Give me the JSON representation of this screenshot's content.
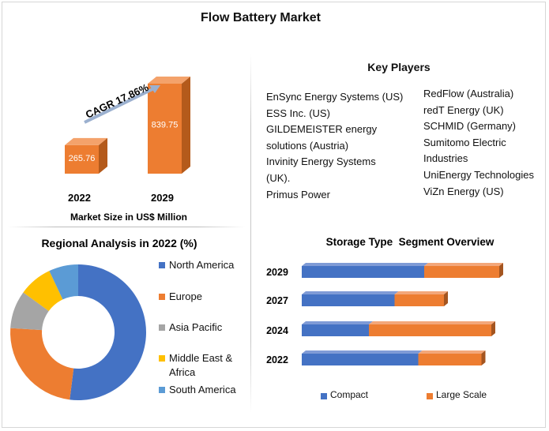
{
  "title": "Flow Battery Market",
  "market_size": {
    "caption": "Market Size in US$ Million",
    "cagr_label": "CAGR 17.86%",
    "bars": [
      {
        "year": "2022",
        "value": 265.76,
        "value_label": "265.76"
      },
      {
        "year": "2029",
        "value": 839.75,
        "value_label": "839.75"
      }
    ]
  },
  "key_players": {
    "title": "Key Players",
    "left_column": [
      "EnSync Energy Systems (US)",
      "ESS Inc. (US)",
      "GILDEMEISTER energy",
      "solutions (Austria)",
      "Invinity Energy Systems",
      "(UK).",
      "Primus Power"
    ],
    "right_column": [
      "RedFlow (Australia)",
      "redT Energy (UK)",
      "SCHMID (Germany)",
      "Sumitomo Electric",
      "Industries",
      "UniEnergy Technologies",
      "ViZn Energy (US)"
    ]
  },
  "regional": {
    "title": "Regional Analysis in 2022 (%)",
    "legend": [
      {
        "label_lines": [
          "North America"
        ],
        "color": "#4472C4"
      },
      {
        "label_lines": [
          "Europe"
        ],
        "color": "#ED7D31"
      },
      {
        "label_lines": [
          "Asia Pacific"
        ],
        "color": "#A5A5A5"
      },
      {
        "label_lines": [
          "Middle East &",
          "Africa"
        ],
        "color": "#FFC000"
      },
      {
        "label_lines": [
          "South America"
        ],
        "color": "#5B9BD5"
      }
    ]
  },
  "storage": {
    "title": "Storage Type  Segment Overview",
    "legend": [
      {
        "label": "Compact",
        "color": "#4472C4"
      },
      {
        "label": "Large Scale",
        "color": "#ED7D31"
      }
    ]
  },
  "chart_data": [
    {
      "type": "bar",
      "title": "",
      "categories": [
        "2022",
        "2029"
      ],
      "values": [
        265.76,
        839.75
      ],
      "xlabel": "Market Size in US$ Million",
      "annotation": "CAGR 17.86%"
    },
    {
      "type": "pie",
      "title": "Regional Analysis in 2022 (%)",
      "style": "donut",
      "labels": [
        "North America",
        "Europe",
        "Asia Pacific",
        "Middle East & Africa",
        "South America"
      ],
      "values": [
        52,
        24,
        9,
        8,
        7
      ],
      "colors": [
        "#4472C4",
        "#ED7D31",
        "#A5A5A5",
        "#FFC000",
        "#5B9BD5"
      ],
      "legend": "right"
    },
    {
      "type": "bar",
      "orientation": "horizontal",
      "stacked": true,
      "title": "Storage Type  Segment Overview",
      "categories": [
        "2029",
        "2027",
        "2024",
        "2022"
      ],
      "series": [
        {
          "name": "Compact",
          "values": [
            62,
            47,
            34,
            59
          ]
        },
        {
          "name": "Large Scale",
          "values": [
            38,
            25,
            62,
            32
          ]
        }
      ],
      "legend": "bottom"
    }
  ]
}
